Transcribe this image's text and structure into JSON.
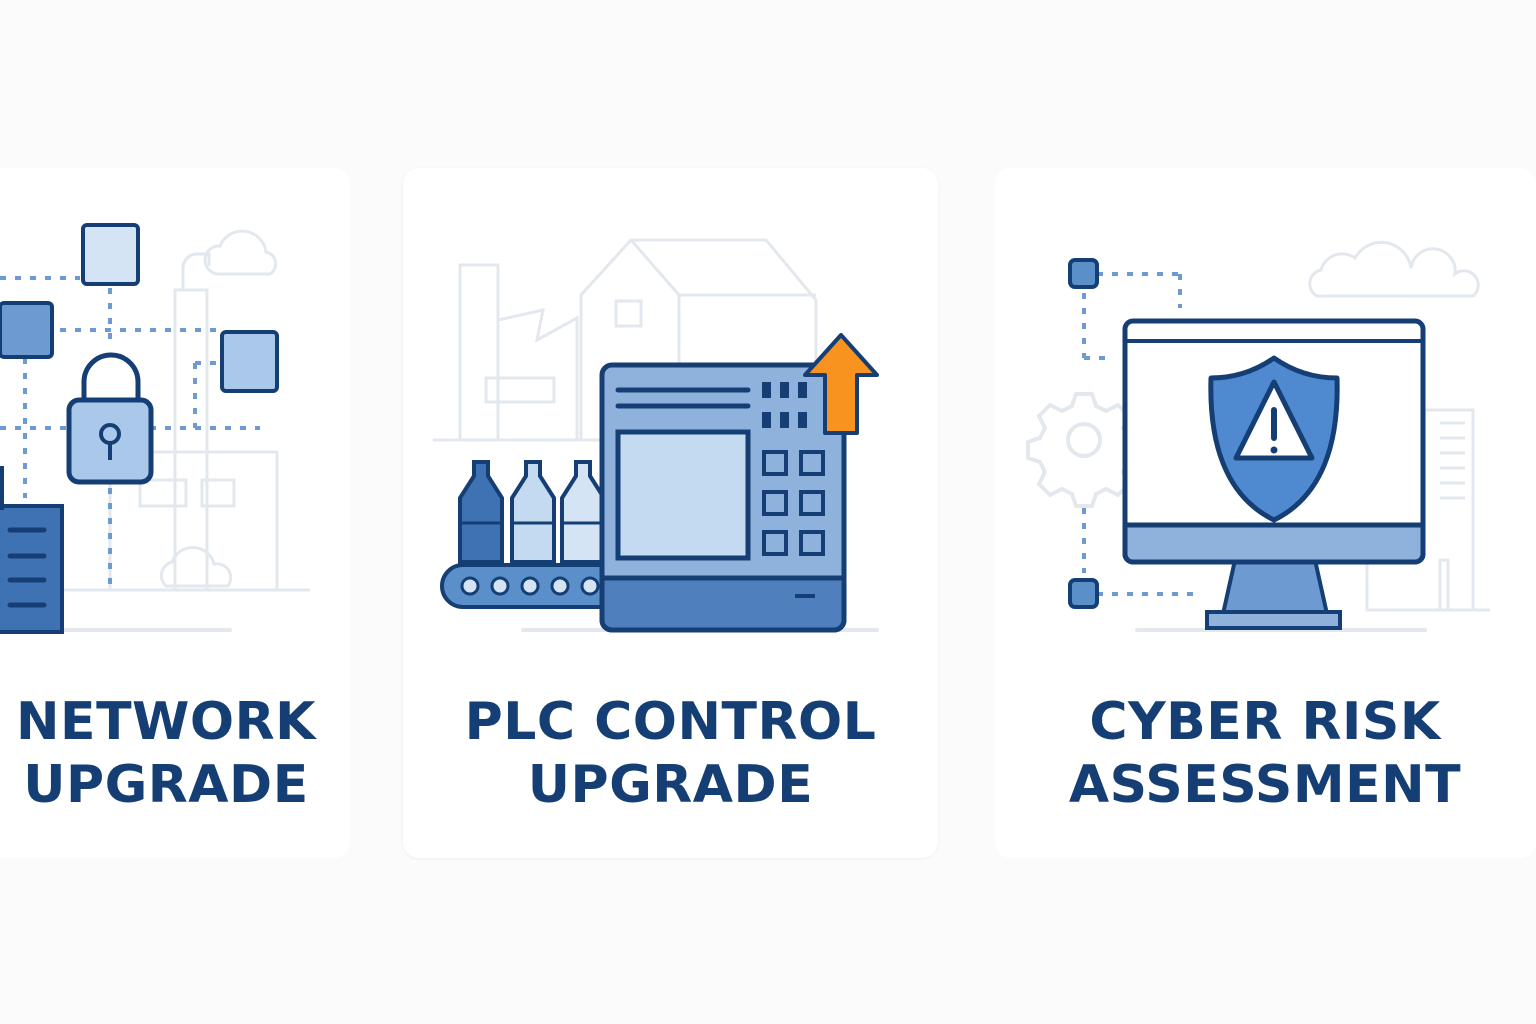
{
  "cards": [
    {
      "id": "network",
      "title_line1": "NETWORK",
      "title_line2": "UPGRADE",
      "icons": [
        "padlock-icon",
        "network-node-icon",
        "server-rack-icon",
        "factory-icon",
        "cloud-icon"
      ]
    },
    {
      "id": "plc",
      "title_line1": "PLC CONTROL",
      "title_line2": "UPGRADE",
      "icons": [
        "plc-controller-icon",
        "upgrade-arrow-icon",
        "bottle-icon",
        "conveyor-belt-icon",
        "factory-icon"
      ]
    },
    {
      "id": "cyber",
      "title_line1": "CYBER RISK",
      "title_line2": "ASSESSMENT",
      "icons": [
        "monitor-icon",
        "shield-warning-icon",
        "gear-icon",
        "network-node-icon",
        "cloud-icon",
        "document-icon"
      ]
    }
  ],
  "colors": {
    "dark_blue": "#153f74",
    "mid_blue": "#5b8fca",
    "light_blue": "#c4daf0",
    "faint_gray": "#e3e8ef",
    "accent_orange": "#f7931e",
    "background": "#fbfbfc"
  }
}
